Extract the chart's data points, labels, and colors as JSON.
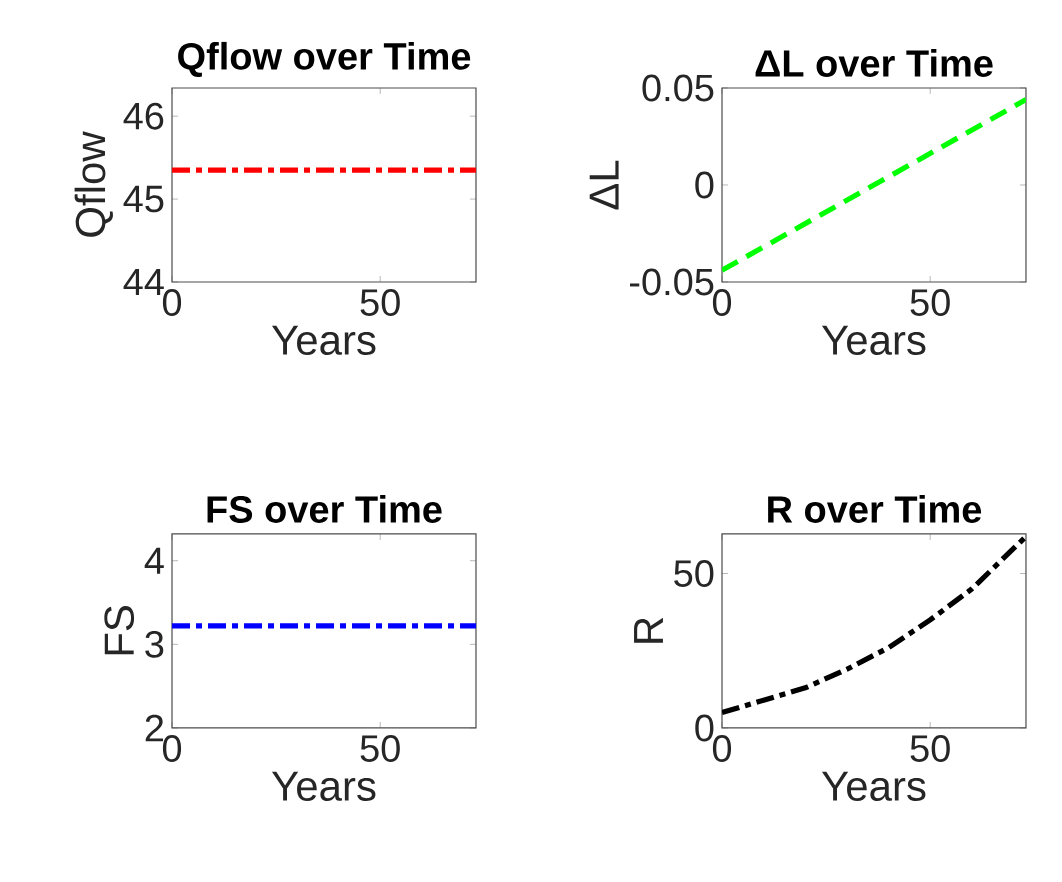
{
  "chart_data": [
    {
      "type": "line",
      "title": "Qflow over Time",
      "xlabel": "Years",
      "ylabel": "Qflow",
      "x": [
        0,
        73
      ],
      "series": [
        {
          "color": "#ff0000",
          "values": [
            45.35,
            45.35
          ],
          "line_style": "dashdot"
        }
      ],
      "xlim": [
        0,
        73
      ],
      "xticks": [
        0,
        50
      ],
      "ylim": [
        44,
        46.34
      ],
      "yticks": [
        44,
        45,
        46
      ]
    },
    {
      "type": "line",
      "title": "ΔL over Time",
      "xlabel": "Years",
      "ylabel": "ΔL",
      "x": [
        0,
        73
      ],
      "series": [
        {
          "color": "#00ff00",
          "values": [
            -0.044,
            0.044
          ],
          "line_style": "dashed"
        }
      ],
      "xlim": [
        0,
        73
      ],
      "xticks": [
        0,
        50
      ],
      "ylim": [
        -0.05,
        0.05
      ],
      "yticks": [
        -0.05,
        0,
        0.05
      ]
    },
    {
      "type": "line",
      "title": "FS over Time",
      "xlabel": "Years",
      "ylabel": "FS",
      "x": [
        0,
        73
      ],
      "series": [
        {
          "color": "#0000ff",
          "values": [
            3.22,
            3.22
          ],
          "line_style": "dashdot"
        }
      ],
      "xlim": [
        0,
        73
      ],
      "xticks": [
        0,
        50
      ],
      "ylim": [
        2,
        4.32
      ],
      "yticks": [
        2,
        3,
        4
      ]
    },
    {
      "type": "line",
      "title": "R over Time",
      "xlabel": "Years",
      "ylabel": "R",
      "x": [
        0,
        10,
        20,
        30,
        40,
        50,
        60,
        73
      ],
      "series": [
        {
          "color": "#000000",
          "values": [
            5,
            9,
            13,
            19,
            26,
            35,
            45,
            62
          ],
          "line_style": "dashdot"
        }
      ],
      "xlim": [
        0,
        73
      ],
      "xticks": [
        0,
        50
      ],
      "ylim": [
        0,
        62.8
      ],
      "yticks": [
        0,
        50
      ]
    }
  ]
}
